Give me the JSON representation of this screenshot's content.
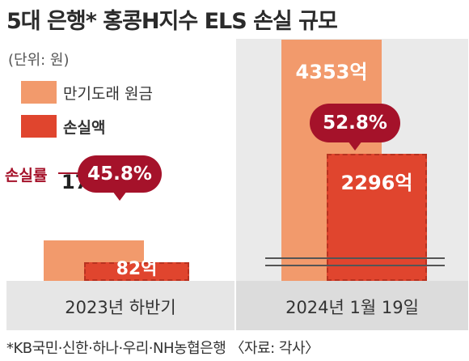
{
  "chart_data": {
    "type": "bar",
    "title": "5대 은행* 홍콩H지수 ELS 손실 규모",
    "unit": "(단위: 원)",
    "categories": [
      "2023년 하반기",
      "2024년 1월 19일"
    ],
    "series": [
      {
        "name": "만기도래 원금",
        "values": [
          179,
          4353
        ],
        "labels": [
          "179억",
          "4353억"
        ],
        "color": "#f29a6c"
      },
      {
        "name": "손실액",
        "values": [
          82,
          2296
        ],
        "labels": [
          "82억",
          "2296억"
        ],
        "color": "#e0452e"
      }
    ],
    "loss_rate": {
      "label": "손실률",
      "values": [
        "45.8%",
        "52.8%"
      ],
      "color": "#a5122a"
    },
    "axis_break": true,
    "legend_position": "top-left",
    "footnote": "*KB국민·신한·하나·우리·NH농협은행 〈자료: 각사〉"
  }
}
